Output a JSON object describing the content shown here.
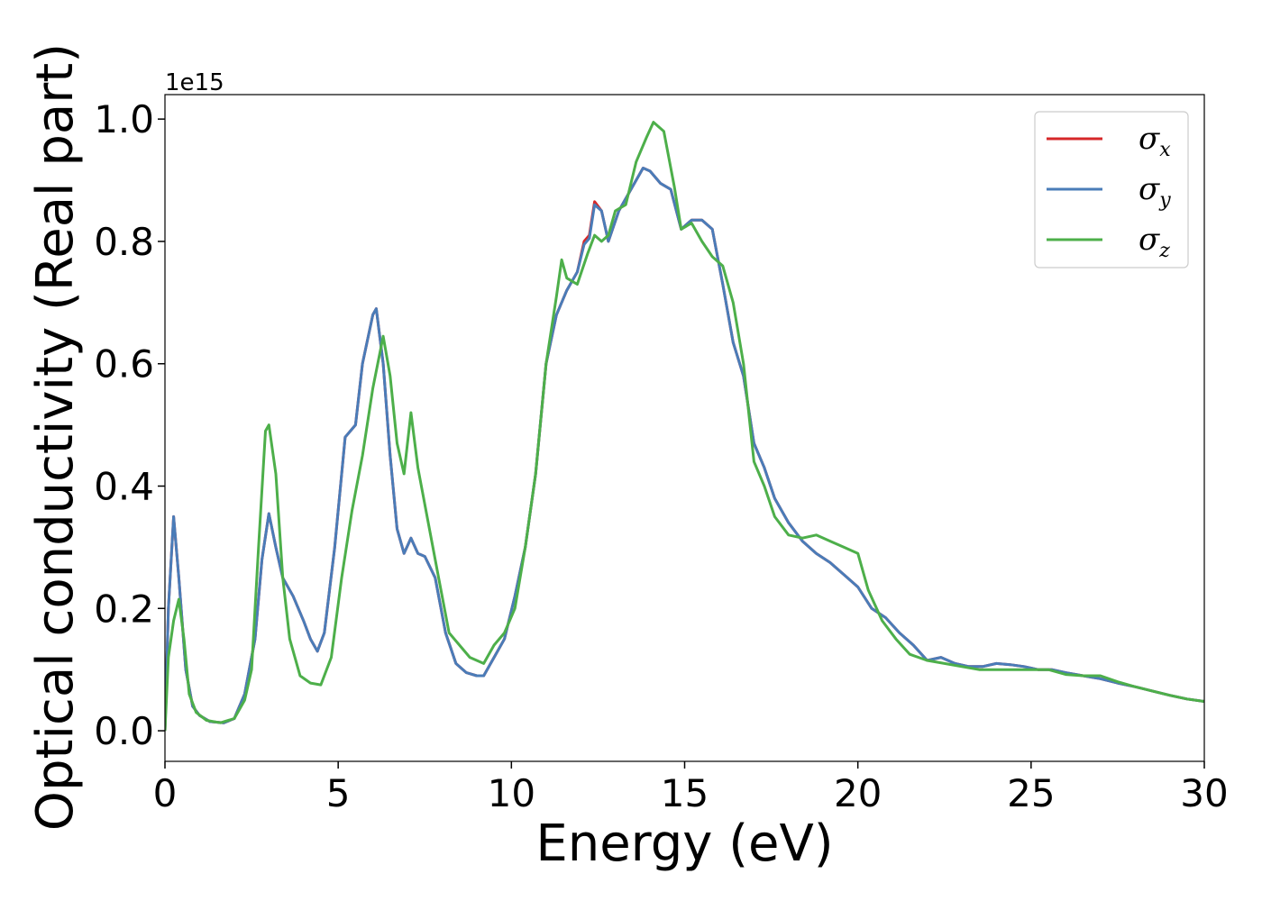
{
  "chart_data": {
    "type": "line",
    "xlabel": "Energy (eV)",
    "ylabel": "Optical conductivity (Real part)",
    "y_offset_label": "1e15",
    "xlim": [
      0,
      30
    ],
    "ylim": [
      -0.05,
      1.04
    ],
    "x_ticks": [
      0,
      5,
      10,
      15,
      20,
      25,
      30
    ],
    "x_tick_labels": [
      "0",
      "5",
      "10",
      "15",
      "20",
      "25",
      "30"
    ],
    "y_ticks": [
      0.0,
      0.2,
      0.4,
      0.6,
      0.8,
      1.0
    ],
    "y_tick_labels": [
      "0.0",
      "0.2",
      "0.4",
      "0.6",
      "0.8",
      "1.0"
    ],
    "grid": false,
    "legend_position": "top-right",
    "series": [
      {
        "name": "σx",
        "symbol": "σ",
        "subscript": "x",
        "color": "#d62728",
        "points": [
          [
            0,
            0
          ],
          [
            0.1,
            0.2
          ],
          [
            0.25,
            0.35
          ],
          [
            0.4,
            0.25
          ],
          [
            0.6,
            0.1
          ],
          [
            0.8,
            0.04
          ],
          [
            1.0,
            0.025
          ],
          [
            1.3,
            0.015
          ],
          [
            1.7,
            0.013
          ],
          [
            2.0,
            0.02
          ],
          [
            2.3,
            0.06
          ],
          [
            2.6,
            0.15
          ],
          [
            2.8,
            0.28
          ],
          [
            3.0,
            0.355
          ],
          [
            3.2,
            0.3
          ],
          [
            3.4,
            0.25
          ],
          [
            3.7,
            0.22
          ],
          [
            4.0,
            0.18
          ],
          [
            4.2,
            0.15
          ],
          [
            4.4,
            0.13
          ],
          [
            4.6,
            0.16
          ],
          [
            4.9,
            0.3
          ],
          [
            5.2,
            0.48
          ],
          [
            5.5,
            0.5
          ],
          [
            5.7,
            0.6
          ],
          [
            6.0,
            0.68
          ],
          [
            6.1,
            0.69
          ],
          [
            6.3,
            0.6
          ],
          [
            6.5,
            0.45
          ],
          [
            6.7,
            0.33
          ],
          [
            6.9,
            0.29
          ],
          [
            7.1,
            0.315
          ],
          [
            7.3,
            0.29
          ],
          [
            7.5,
            0.285
          ],
          [
            7.8,
            0.25
          ],
          [
            8.1,
            0.16
          ],
          [
            8.4,
            0.11
          ],
          [
            8.7,
            0.095
          ],
          [
            9.0,
            0.09
          ],
          [
            9.2,
            0.09
          ],
          [
            9.5,
            0.12
          ],
          [
            9.8,
            0.15
          ],
          [
            10.1,
            0.22
          ],
          [
            10.4,
            0.3
          ],
          [
            10.7,
            0.42
          ],
          [
            11.0,
            0.6
          ],
          [
            11.3,
            0.68
          ],
          [
            11.6,
            0.72
          ],
          [
            11.9,
            0.75
          ],
          [
            12.1,
            0.8
          ],
          [
            12.25,
            0.81
          ],
          [
            12.4,
            0.865
          ],
          [
            12.6,
            0.85
          ],
          [
            12.8,
            0.8
          ],
          [
            13.1,
            0.85
          ],
          [
            13.4,
            0.88
          ],
          [
            13.8,
            0.92
          ],
          [
            14.0,
            0.915
          ],
          [
            14.3,
            0.895
          ],
          [
            14.6,
            0.885
          ],
          [
            14.9,
            0.82
          ],
          [
            15.2,
            0.835
          ],
          [
            15.5,
            0.835
          ],
          [
            15.8,
            0.82
          ],
          [
            16.1,
            0.73
          ],
          [
            16.4,
            0.635
          ],
          [
            16.7,
            0.58
          ],
          [
            17.0,
            0.47
          ],
          [
            17.3,
            0.43
          ],
          [
            17.6,
            0.38
          ],
          [
            18.0,
            0.34
          ],
          [
            18.4,
            0.31
          ],
          [
            18.8,
            0.29
          ],
          [
            19.2,
            0.275
          ],
          [
            19.6,
            0.255
          ],
          [
            20.0,
            0.235
          ],
          [
            20.4,
            0.2
          ],
          [
            20.8,
            0.185
          ],
          [
            21.2,
            0.16
          ],
          [
            21.6,
            0.14
          ],
          [
            22.0,
            0.115
          ],
          [
            22.4,
            0.12
          ],
          [
            22.8,
            0.11
          ],
          [
            23.2,
            0.105
          ],
          [
            23.6,
            0.105
          ],
          [
            24.0,
            0.11
          ],
          [
            24.4,
            0.108
          ],
          [
            24.8,
            0.105
          ],
          [
            25.2,
            0.1
          ],
          [
            25.6,
            0.1
          ],
          [
            26.0,
            0.095
          ],
          [
            26.5,
            0.09
          ],
          [
            27.0,
            0.085
          ],
          [
            27.5,
            0.078
          ],
          [
            28.0,
            0.072
          ],
          [
            28.5,
            0.065
          ],
          [
            29.0,
            0.058
          ],
          [
            29.5,
            0.052
          ],
          [
            30.0,
            0.048
          ]
        ]
      },
      {
        "name": "σy",
        "symbol": "σ",
        "subscript": "y",
        "color": "#4a7cb8",
        "points": [
          [
            0,
            0
          ],
          [
            0.1,
            0.2
          ],
          [
            0.25,
            0.35
          ],
          [
            0.4,
            0.25
          ],
          [
            0.6,
            0.1
          ],
          [
            0.8,
            0.04
          ],
          [
            1.0,
            0.025
          ],
          [
            1.3,
            0.015
          ],
          [
            1.7,
            0.013
          ],
          [
            2.0,
            0.02
          ],
          [
            2.3,
            0.06
          ],
          [
            2.6,
            0.15
          ],
          [
            2.8,
            0.28
          ],
          [
            3.0,
            0.355
          ],
          [
            3.2,
            0.3
          ],
          [
            3.4,
            0.25
          ],
          [
            3.7,
            0.22
          ],
          [
            4.0,
            0.18
          ],
          [
            4.2,
            0.15
          ],
          [
            4.4,
            0.13
          ],
          [
            4.6,
            0.16
          ],
          [
            4.9,
            0.3
          ],
          [
            5.2,
            0.48
          ],
          [
            5.5,
            0.5
          ],
          [
            5.7,
            0.6
          ],
          [
            6.0,
            0.68
          ],
          [
            6.1,
            0.69
          ],
          [
            6.3,
            0.6
          ],
          [
            6.5,
            0.45
          ],
          [
            6.7,
            0.33
          ],
          [
            6.9,
            0.29
          ],
          [
            7.1,
            0.315
          ],
          [
            7.3,
            0.29
          ],
          [
            7.5,
            0.285
          ],
          [
            7.8,
            0.25
          ],
          [
            8.1,
            0.16
          ],
          [
            8.4,
            0.11
          ],
          [
            8.7,
            0.095
          ],
          [
            9.0,
            0.09
          ],
          [
            9.2,
            0.09
          ],
          [
            9.5,
            0.12
          ],
          [
            9.8,
            0.15
          ],
          [
            10.1,
            0.22
          ],
          [
            10.4,
            0.3
          ],
          [
            10.7,
            0.42
          ],
          [
            11.0,
            0.6
          ],
          [
            11.3,
            0.68
          ],
          [
            11.6,
            0.72
          ],
          [
            11.9,
            0.75
          ],
          [
            12.1,
            0.795
          ],
          [
            12.25,
            0.805
          ],
          [
            12.4,
            0.86
          ],
          [
            12.6,
            0.85
          ],
          [
            12.8,
            0.8
          ],
          [
            13.1,
            0.85
          ],
          [
            13.4,
            0.88
          ],
          [
            13.8,
            0.92
          ],
          [
            14.0,
            0.915
          ],
          [
            14.3,
            0.895
          ],
          [
            14.6,
            0.885
          ],
          [
            14.9,
            0.82
          ],
          [
            15.2,
            0.835
          ],
          [
            15.5,
            0.835
          ],
          [
            15.8,
            0.82
          ],
          [
            16.1,
            0.73
          ],
          [
            16.4,
            0.635
          ],
          [
            16.7,
            0.58
          ],
          [
            17.0,
            0.47
          ],
          [
            17.3,
            0.43
          ],
          [
            17.6,
            0.38
          ],
          [
            18.0,
            0.34
          ],
          [
            18.4,
            0.31
          ],
          [
            18.8,
            0.29
          ],
          [
            19.2,
            0.275
          ],
          [
            19.6,
            0.255
          ],
          [
            20.0,
            0.235
          ],
          [
            20.4,
            0.2
          ],
          [
            20.8,
            0.185
          ],
          [
            21.2,
            0.16
          ],
          [
            21.6,
            0.14
          ],
          [
            22.0,
            0.115
          ],
          [
            22.4,
            0.12
          ],
          [
            22.8,
            0.11
          ],
          [
            23.2,
            0.105
          ],
          [
            23.6,
            0.105
          ],
          [
            24.0,
            0.11
          ],
          [
            24.4,
            0.108
          ],
          [
            24.8,
            0.105
          ],
          [
            25.2,
            0.1
          ],
          [
            25.6,
            0.1
          ],
          [
            26.0,
            0.095
          ],
          [
            26.5,
            0.09
          ],
          [
            27.0,
            0.085
          ],
          [
            27.5,
            0.078
          ],
          [
            28.0,
            0.072
          ],
          [
            28.5,
            0.065
          ],
          [
            29.0,
            0.058
          ],
          [
            29.5,
            0.052
          ],
          [
            30.0,
            0.048
          ]
        ]
      },
      {
        "name": "σz",
        "symbol": "σ",
        "subscript": "z",
        "color": "#4daf4a",
        "points": [
          [
            0,
            0
          ],
          [
            0.1,
            0.12
          ],
          [
            0.25,
            0.18
          ],
          [
            0.4,
            0.215
          ],
          [
            0.55,
            0.15
          ],
          [
            0.7,
            0.06
          ],
          [
            0.9,
            0.03
          ],
          [
            1.2,
            0.017
          ],
          [
            1.6,
            0.013
          ],
          [
            2.0,
            0.02
          ],
          [
            2.3,
            0.05
          ],
          [
            2.5,
            0.1
          ],
          [
            2.7,
            0.3
          ],
          [
            2.9,
            0.49
          ],
          [
            3.0,
            0.5
          ],
          [
            3.2,
            0.42
          ],
          [
            3.4,
            0.25
          ],
          [
            3.6,
            0.15
          ],
          [
            3.9,
            0.09
          ],
          [
            4.2,
            0.078
          ],
          [
            4.5,
            0.075
          ],
          [
            4.8,
            0.12
          ],
          [
            5.1,
            0.25
          ],
          [
            5.4,
            0.36
          ],
          [
            5.7,
            0.45
          ],
          [
            6.0,
            0.56
          ],
          [
            6.3,
            0.645
          ],
          [
            6.5,
            0.58
          ],
          [
            6.7,
            0.47
          ],
          [
            6.9,
            0.42
          ],
          [
            7.1,
            0.52
          ],
          [
            7.3,
            0.43
          ],
          [
            7.6,
            0.34
          ],
          [
            7.9,
            0.25
          ],
          [
            8.2,
            0.16
          ],
          [
            8.5,
            0.14
          ],
          [
            8.8,
            0.12
          ],
          [
            9.2,
            0.11
          ],
          [
            9.5,
            0.14
          ],
          [
            9.8,
            0.16
          ],
          [
            10.1,
            0.2
          ],
          [
            10.4,
            0.3
          ],
          [
            10.7,
            0.42
          ],
          [
            11.0,
            0.6
          ],
          [
            11.3,
            0.71
          ],
          [
            11.45,
            0.77
          ],
          [
            11.6,
            0.74
          ],
          [
            11.9,
            0.73
          ],
          [
            12.2,
            0.78
          ],
          [
            12.4,
            0.81
          ],
          [
            12.6,
            0.8
          ],
          [
            12.8,
            0.81
          ],
          [
            13.0,
            0.85
          ],
          [
            13.3,
            0.86
          ],
          [
            13.6,
            0.93
          ],
          [
            13.9,
            0.97
          ],
          [
            14.1,
            0.995
          ],
          [
            14.4,
            0.98
          ],
          [
            14.7,
            0.89
          ],
          [
            14.9,
            0.82
          ],
          [
            15.2,
            0.83
          ],
          [
            15.5,
            0.8
          ],
          [
            15.8,
            0.775
          ],
          [
            16.1,
            0.76
          ],
          [
            16.4,
            0.7
          ],
          [
            16.7,
            0.6
          ],
          [
            17.0,
            0.44
          ],
          [
            17.3,
            0.4
          ],
          [
            17.6,
            0.35
          ],
          [
            18.0,
            0.32
          ],
          [
            18.4,
            0.315
          ],
          [
            18.8,
            0.32
          ],
          [
            19.2,
            0.31
          ],
          [
            19.6,
            0.3
          ],
          [
            20.0,
            0.29
          ],
          [
            20.3,
            0.23
          ],
          [
            20.7,
            0.18
          ],
          [
            21.1,
            0.15
          ],
          [
            21.5,
            0.125
          ],
          [
            22.0,
            0.115
          ],
          [
            22.5,
            0.11
          ],
          [
            23.0,
            0.105
          ],
          [
            23.5,
            0.1
          ],
          [
            24.0,
            0.1
          ],
          [
            24.5,
            0.1
          ],
          [
            25.0,
            0.1
          ],
          [
            25.5,
            0.1
          ],
          [
            26.0,
            0.092
          ],
          [
            26.5,
            0.09
          ],
          [
            27.0,
            0.09
          ],
          [
            27.5,
            0.08
          ],
          [
            28.0,
            0.072
          ],
          [
            28.5,
            0.065
          ],
          [
            29.0,
            0.058
          ],
          [
            29.5,
            0.052
          ],
          [
            30.0,
            0.048
          ]
        ]
      }
    ]
  }
}
